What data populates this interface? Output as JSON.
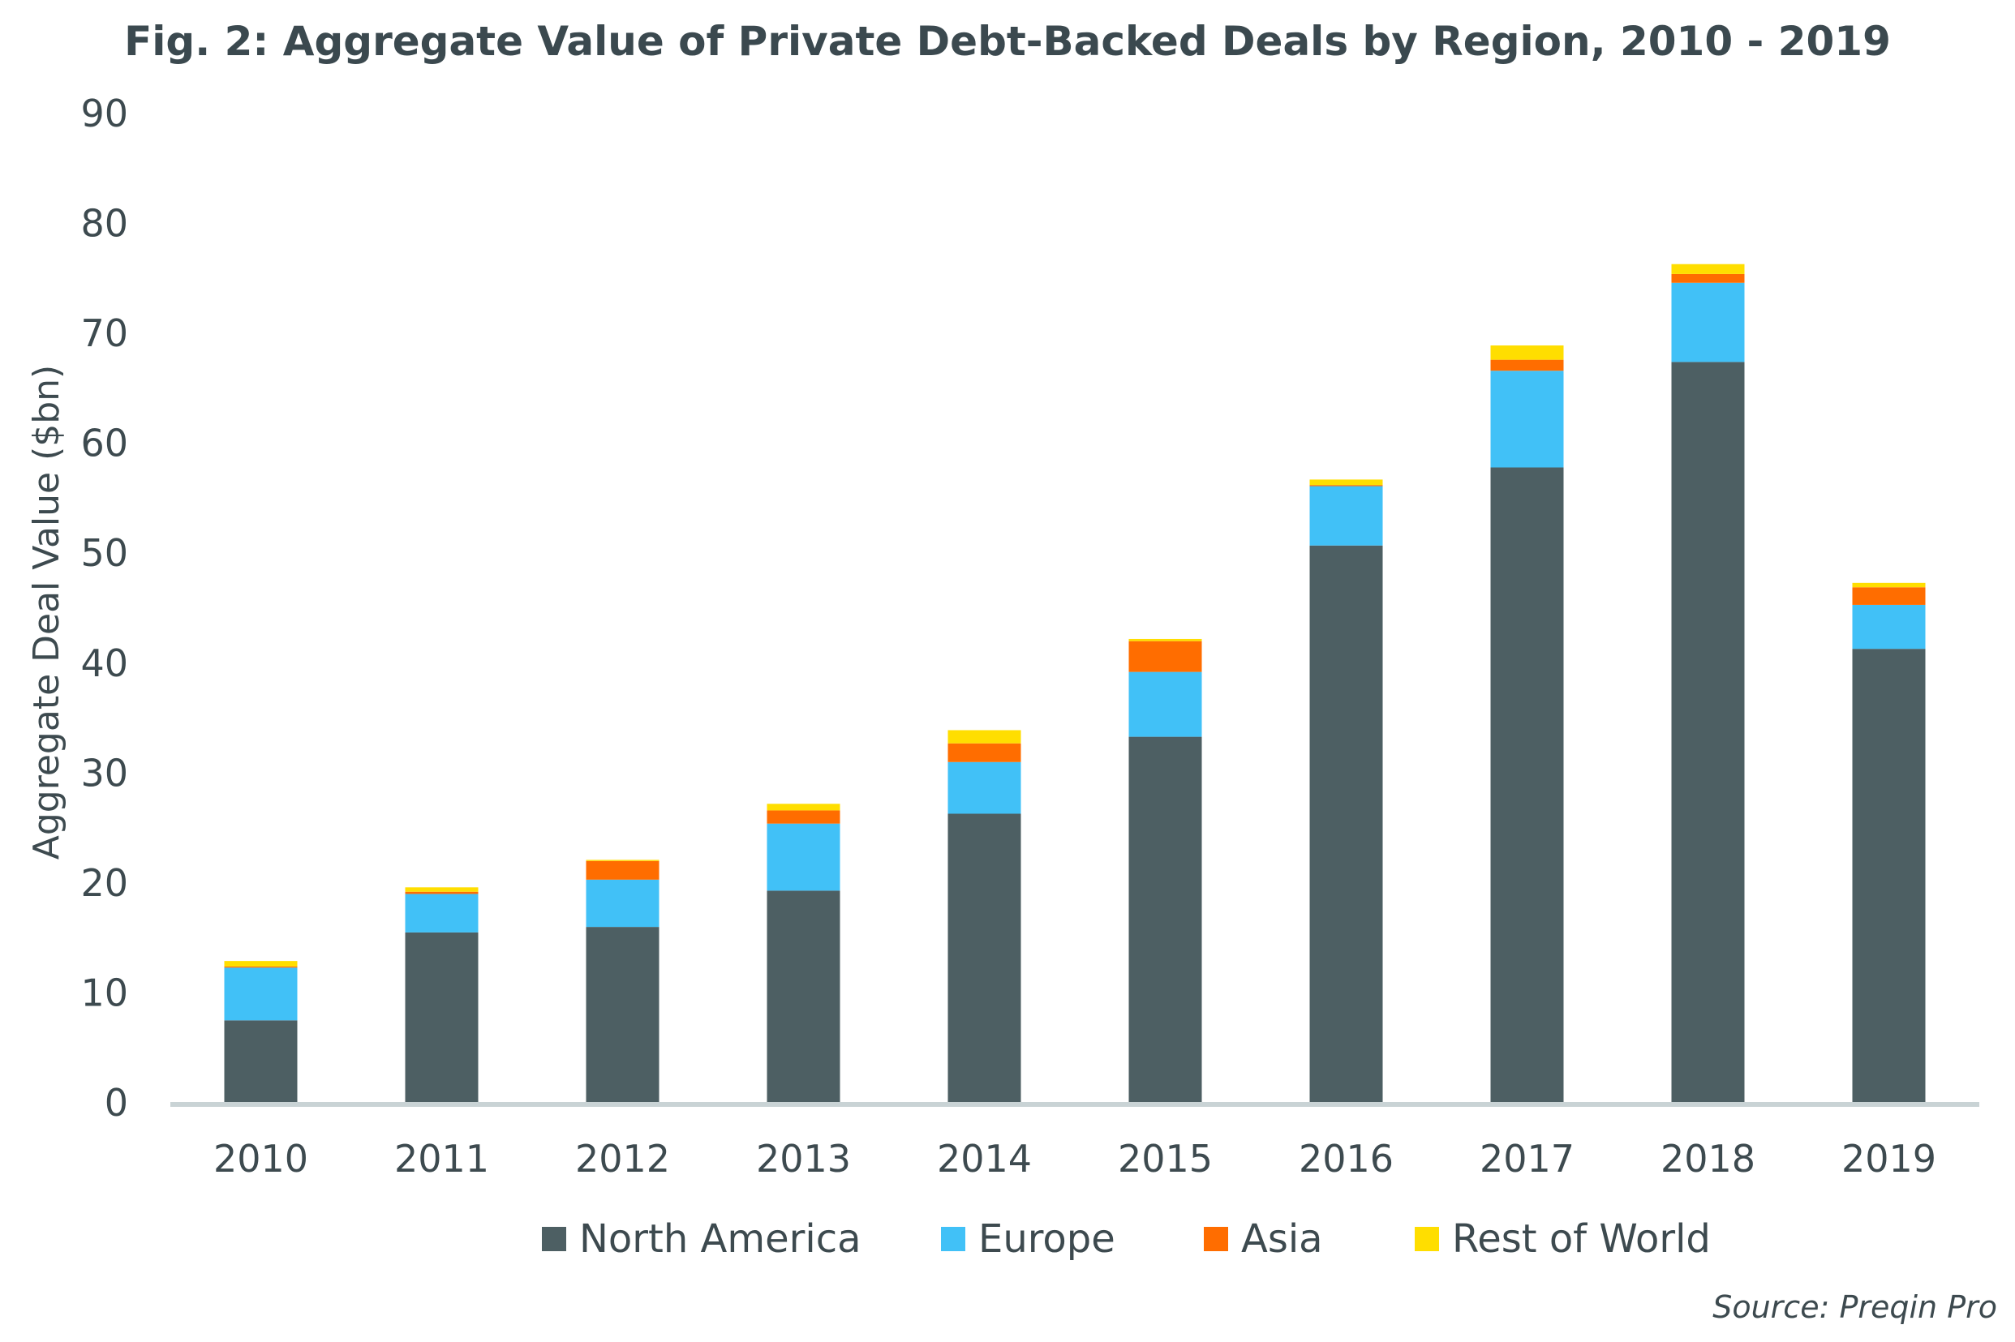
{
  "chart_data": {
    "type": "bar",
    "stacked": true,
    "title": "Fig. 2: Aggregate Value of Private Debt-Backed Deals by Region, 2010 - 2019",
    "xlabel": "",
    "ylabel": "Aggregate Deal Value ($bn)",
    "ylim": [
      0,
      90
    ],
    "yticks": [
      "0",
      "10",
      "20",
      "30",
      "40",
      "50",
      "60",
      "70",
      "80",
      "90"
    ],
    "grid": false,
    "legend_position": "bottom",
    "categories": [
      "2010",
      "2011",
      "2012",
      "2013",
      "2014",
      "2015",
      "2016",
      "2017",
      "2018",
      "2019"
    ],
    "series": [
      {
        "name": "North America",
        "color": "#4d5f63",
        "values": [
          7.5,
          15.5,
          16.0,
          19.3,
          26.3,
          33.3,
          50.7,
          57.8,
          67.4,
          41.3
        ]
      },
      {
        "name": "Europe",
        "color": "#41c1f7",
        "values": [
          4.8,
          3.5,
          4.3,
          6.1,
          4.7,
          5.9,
          5.4,
          8.8,
          7.2,
          4.0
        ]
      },
      {
        "name": "Asia",
        "color": "#ff6d00",
        "values": [
          0.1,
          0.2,
          1.7,
          1.2,
          1.7,
          2.8,
          0.1,
          1.0,
          0.8,
          1.6
        ]
      },
      {
        "name": "Rest of World",
        "color": "#ffde00",
        "values": [
          0.5,
          0.4,
          0.1,
          0.6,
          1.2,
          0.2,
          0.5,
          1.3,
          0.9,
          0.4
        ]
      }
    ]
  },
  "source": "Source: Preqin Pro",
  "axis_color": "#c9d3d5"
}
